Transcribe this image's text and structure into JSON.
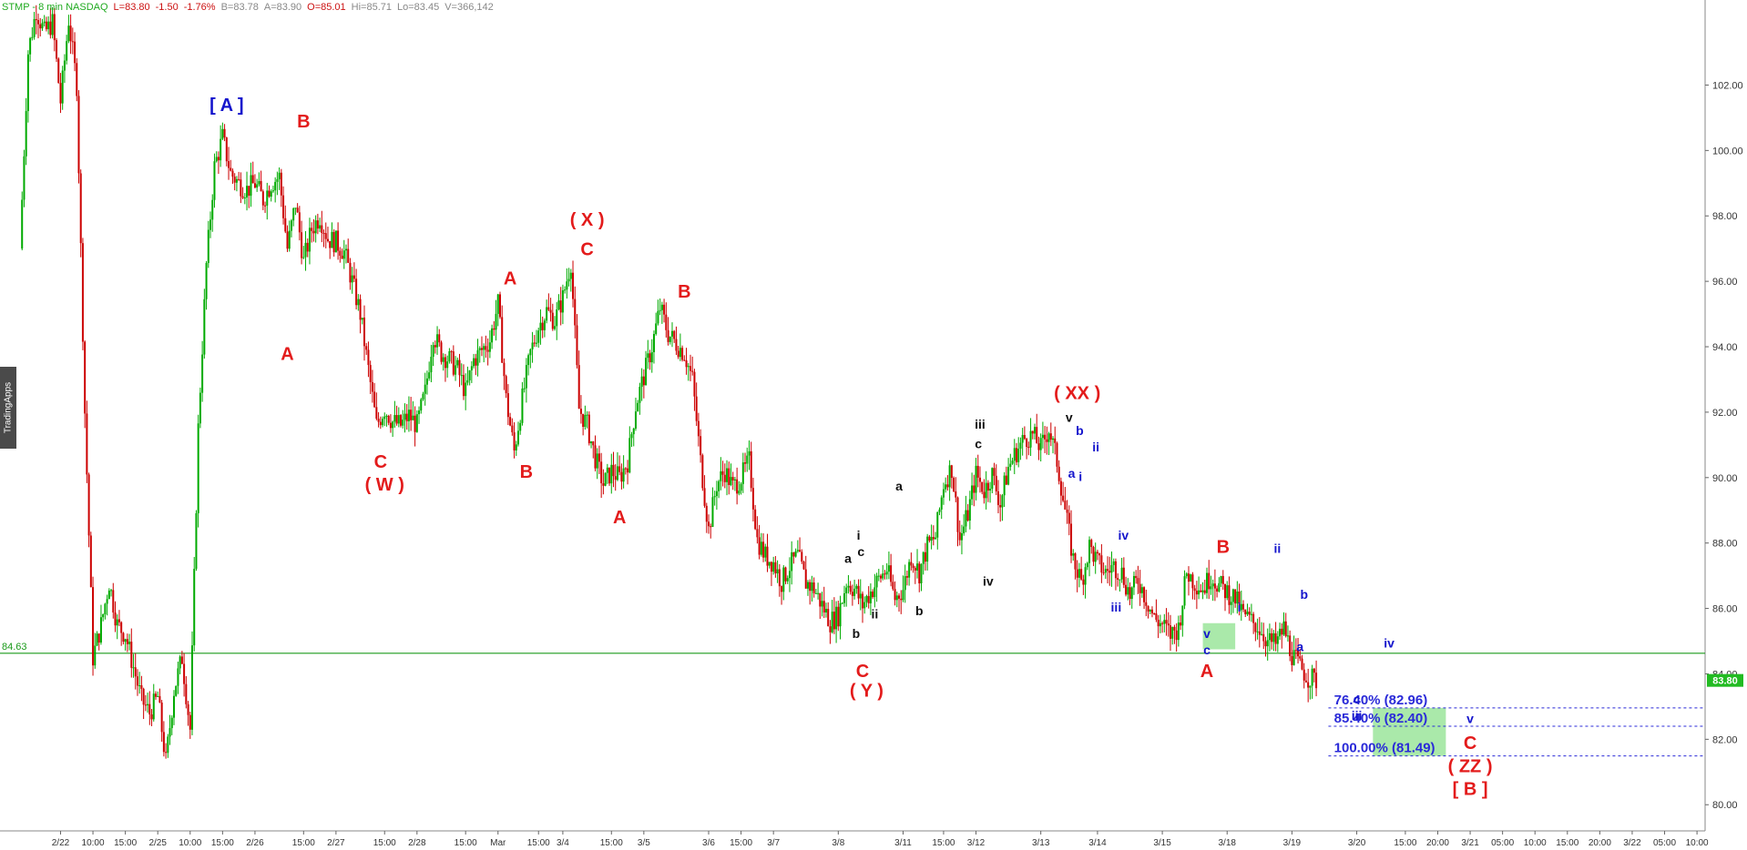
{
  "header": {
    "symbol": "STMP - 8 min  NASDAQ",
    "last": "L=83.80",
    "change": "-1.50",
    "change_pct": "-1.76%",
    "bid": "B=83.78",
    "ask": "A=83.90",
    "open": "O=85.01",
    "high": "Hi=85.71",
    "low": "Lo=83.45",
    "volume": "V=366,142"
  },
  "watermark": "TradingApps",
  "colors": {
    "up_candle": "#00aa00",
    "down_candle": "#cc0000",
    "wave_red": "#e31b1b",
    "wave_blue": "#1414cc",
    "wave_black": "#111111",
    "horizontal_line": "#1a9a1a",
    "fib_line": "#2a2ad8",
    "zone_fill": "#8ee28e",
    "price_badge": "#22bb22",
    "header_symbol": "#1faa1f",
    "header_red": "#cc1111",
    "header_gray": "#888888"
  },
  "chart_data": {
    "type": "candlestick",
    "ylim": [
      79.2,
      104.6
    ],
    "y_ticks": [
      80,
      82,
      84,
      86,
      88,
      90,
      92,
      94,
      96,
      98,
      100,
      102
    ],
    "y_tick_labels": [
      "80.00",
      "82.00",
      "84.00",
      "86.00",
      "88.00",
      "90.00",
      "92.00",
      "94.00",
      "96.00",
      "98.00",
      "100.00",
      "102.00"
    ],
    "x_labels": [
      "2/22",
      "10:00",
      "15:00",
      "2/25",
      "10:00",
      "15:00",
      "2/26",
      "15:00",
      "2/27",
      "15:00",
      "2/28",
      "15:00",
      "Mar",
      "15:00",
      "3/4",
      "15:00",
      "3/5",
      "3/6",
      "15:00",
      "3/7",
      "3/8",
      "3/11",
      "15:00",
      "3/12",
      "3/13",
      "3/14",
      "3/15",
      "3/18",
      "3/19",
      "3/20",
      "15:00",
      "20:00",
      "3/21",
      "05:00",
      "10:00",
      "15:00",
      "20:00",
      "3/22",
      "05:00",
      "10:00"
    ],
    "x_label_index": [
      5,
      9,
      13,
      17,
      21,
      25,
      29,
      35,
      39,
      45,
      49,
      55,
      59,
      64,
      67,
      73,
      77,
      85,
      89,
      93,
      101,
      109,
      114,
      118,
      126,
      133,
      141,
      149,
      157,
      165,
      171,
      175,
      179,
      183,
      187,
      191,
      195,
      199,
      203,
      207
    ],
    "price_path": [
      [
        0,
        97.0
      ],
      [
        1,
        103.0
      ],
      [
        2,
        104.3
      ],
      [
        3,
        103.6
      ],
      [
        4,
        103.9
      ],
      [
        5,
        101.5
      ],
      [
        6,
        104.0
      ],
      [
        7,
        102.0
      ],
      [
        8,
        92.0
      ],
      [
        9,
        84.5
      ],
      [
        10,
        85.5
      ],
      [
        11,
        86.8
      ],
      [
        12,
        85.5
      ],
      [
        13,
        85.2
      ],
      [
        14,
        84.2
      ],
      [
        15,
        83.2
      ],
      [
        16,
        82.8
      ],
      [
        17,
        83.3
      ],
      [
        18,
        81.3
      ],
      [
        19,
        83.5
      ],
      [
        20,
        84.5
      ],
      [
        21,
        82.3
      ],
      [
        22,
        91.5
      ],
      [
        23,
        96.5
      ],
      [
        24,
        99.5
      ],
      [
        25,
        100.4
      ],
      [
        26,
        99.3
      ],
      [
        27,
        99.0
      ],
      [
        28,
        98.8
      ],
      [
        29,
        99.0
      ],
      [
        30,
        98.5
      ],
      [
        31,
        99.0
      ],
      [
        32,
        99.2
      ],
      [
        33,
        97.0
      ],
      [
        34,
        98.4
      ],
      [
        35,
        96.6
      ],
      [
        36,
        97.6
      ],
      [
        37,
        98.0
      ],
      [
        38,
        97.3
      ],
      [
        39,
        97.2
      ],
      [
        40,
        96.9
      ],
      [
        41,
        96.0
      ],
      [
        42,
        95.0
      ],
      [
        43,
        93.3
      ],
      [
        44,
        91.6
      ],
      [
        45,
        92.1
      ],
      [
        46,
        91.7
      ],
      [
        47,
        91.6
      ],
      [
        48,
        91.9
      ],
      [
        49,
        91.6
      ],
      [
        50,
        92.6
      ],
      [
        51,
        94.4
      ],
      [
        52,
        93.8
      ],
      [
        53,
        93.6
      ],
      [
        54,
        93.3
      ],
      [
        55,
        92.6
      ],
      [
        56,
        93.6
      ],
      [
        57,
        93.9
      ],
      [
        58,
        94.2
      ],
      [
        59,
        95.3
      ],
      [
        60,
        92.4
      ],
      [
        61,
        90.8
      ],
      [
        62,
        92.4
      ],
      [
        63,
        93.8
      ],
      [
        64,
        94.6
      ],
      [
        65,
        95.1
      ],
      [
        66,
        94.8
      ],
      [
        67,
        95.5
      ],
      [
        68,
        96.6
      ],
      [
        69,
        92.1
      ],
      [
        70,
        91.6
      ],
      [
        71,
        90.6
      ],
      [
        72,
        89.8
      ],
      [
        73,
        90.2
      ],
      [
        74,
        90.0
      ],
      [
        75,
        90.5
      ],
      [
        76,
        92.2
      ],
      [
        77,
        93.1
      ],
      [
        78,
        94.0
      ],
      [
        79,
        95.2
      ],
      [
        80,
        94.4
      ],
      [
        81,
        94.1
      ],
      [
        82,
        93.8
      ],
      [
        83,
        93.0
      ],
      [
        84,
        90.5
      ],
      [
        85,
        88.4
      ],
      [
        86,
        89.8
      ],
      [
        87,
        90.2
      ],
      [
        88,
        89.7
      ],
      [
        89,
        90.0
      ],
      [
        90,
        90.5
      ],
      [
        91,
        88.1
      ],
      [
        92,
        87.6
      ],
      [
        93,
        87.4
      ],
      [
        94,
        86.8
      ],
      [
        95,
        87.3
      ],
      [
        96,
        87.6
      ],
      [
        97,
        86.8
      ],
      [
        98,
        86.6
      ],
      [
        99,
        86.1
      ],
      [
        100,
        85.6
      ],
      [
        101,
        85.8
      ],
      [
        102,
        86.8
      ],
      [
        103,
        86.6
      ],
      [
        104,
        86.1
      ],
      [
        105,
        86.5
      ],
      [
        106,
        86.9
      ],
      [
        107,
        87.2
      ],
      [
        108,
        86.3
      ],
      [
        109,
        86.6
      ],
      [
        110,
        87.6
      ],
      [
        111,
        87.1
      ],
      [
        112,
        87.9
      ],
      [
        113,
        88.2
      ],
      [
        114,
        89.8
      ],
      [
        115,
        90.3
      ],
      [
        116,
        88.1
      ],
      [
        117,
        88.9
      ],
      [
        118,
        90.1
      ],
      [
        119,
        89.6
      ],
      [
        120,
        90.1
      ],
      [
        121,
        89.2
      ],
      [
        122,
        90.3
      ],
      [
        123,
        90.8
      ],
      [
        124,
        91.2
      ],
      [
        125,
        91.3
      ],
      [
        126,
        90.9
      ],
      [
        127,
        91.5
      ],
      [
        128,
        90.5
      ],
      [
        129,
        89.0
      ],
      [
        130,
        87.5
      ],
      [
        131,
        86.8
      ],
      [
        132,
        87.9
      ],
      [
        133,
        87.4
      ],
      [
        134,
        87.1
      ],
      [
        135,
        87.3
      ],
      [
        136,
        87.1
      ],
      [
        137,
        86.4
      ],
      [
        138,
        86.9
      ],
      [
        139,
        86.3
      ],
      [
        140,
        85.7
      ],
      [
        141,
        85.5
      ],
      [
        142,
        85.2
      ],
      [
        143,
        85.4
      ],
      [
        144,
        87.1
      ],
      [
        145,
        86.8
      ],
      [
        146,
        86.6
      ],
      [
        147,
        87.0
      ],
      [
        148,
        86.7
      ],
      [
        149,
        86.5
      ],
      [
        150,
        86.3
      ],
      [
        151,
        85.8
      ],
      [
        152,
        85.6
      ],
      [
        153,
        85.4
      ],
      [
        154,
        85.0
      ],
      [
        155,
        84.9
      ],
      [
        156,
        85.4
      ],
      [
        157,
        84.6
      ],
      [
        158,
        84.2
      ],
      [
        159,
        83.9
      ],
      [
        160,
        83.8
      ]
    ],
    "horizontal_lines": [
      {
        "price": 84.63,
        "label": "84.63"
      }
    ],
    "fib_levels": [
      {
        "price": 82.96,
        "label": "76.40% (82.96)"
      },
      {
        "price": 82.4,
        "label": "85.40% (82.40)"
      },
      {
        "price": 81.49,
        "label": "100.00% (81.49)"
      }
    ],
    "zones": [
      {
        "x": [
          146,
          150
        ],
        "y": [
          84.75,
          85.55
        ]
      },
      {
        "x": [
          167,
          176
        ],
        "y": [
          81.49,
          82.96
        ]
      }
    ],
    "current_price": "83.80",
    "annotations": [
      {
        "text": "[ A ]",
        "x": 25.5,
        "y": 101.2,
        "color": "blue",
        "size": "lg"
      },
      {
        "text": "B",
        "x": 35,
        "y": 100.7,
        "color": "red",
        "size": "lg"
      },
      {
        "text": "A",
        "x": 33,
        "y": 93.6,
        "color": "red",
        "size": "lg"
      },
      {
        "text": "( X )",
        "x": 70,
        "y": 97.7,
        "color": "red",
        "size": "lg"
      },
      {
        "text": "C",
        "x": 70,
        "y": 96.8,
        "color": "red",
        "size": "lg"
      },
      {
        "text": "A",
        "x": 60.5,
        "y": 95.9,
        "color": "red",
        "size": "lg"
      },
      {
        "text": "B",
        "x": 82,
        "y": 95.5,
        "color": "red",
        "size": "lg"
      },
      {
        "text": "C",
        "x": 44.5,
        "y": 90.3,
        "color": "red",
        "size": "lg"
      },
      {
        "text": "( W )",
        "x": 45,
        "y": 89.6,
        "color": "red",
        "size": "lg"
      },
      {
        "text": "B",
        "x": 62.5,
        "y": 90.0,
        "color": "red",
        "size": "lg"
      },
      {
        "text": "A",
        "x": 74,
        "y": 88.6,
        "color": "red",
        "size": "lg"
      },
      {
        "text": "( XX )",
        "x": 130.5,
        "y": 92.4,
        "color": "red",
        "size": "lg"
      },
      {
        "text": "C",
        "x": 104,
        "y": 83.9,
        "color": "red",
        "size": "lg"
      },
      {
        "text": "( Y )",
        "x": 104.5,
        "y": 83.3,
        "color": "red",
        "size": "lg"
      },
      {
        "text": "B",
        "x": 148.5,
        "y": 87.7,
        "color": "red",
        "size": "lg"
      },
      {
        "text": "A",
        "x": 146.5,
        "y": 83.9,
        "color": "red",
        "size": "lg"
      },
      {
        "text": "C",
        "x": 179,
        "y": 81.7,
        "color": "red",
        "size": "lg"
      },
      {
        "text": "( ZZ )",
        "x": 179,
        "y": 81.0,
        "color": "red",
        "size": "lg"
      },
      {
        "text": "[ B ]",
        "x": 179,
        "y": 80.3,
        "color": "red",
        "size": "lg"
      },
      {
        "text": "iii",
        "x": 118.5,
        "y": 91.5,
        "color": "black",
        "size": "sm"
      },
      {
        "text": "c",
        "x": 118.3,
        "y": 90.9,
        "color": "black",
        "size": "sm"
      },
      {
        "text": "v",
        "x": 129.5,
        "y": 91.7,
        "color": "black",
        "size": "sm"
      },
      {
        "text": "a",
        "x": 108.5,
        "y": 89.6,
        "color": "black",
        "size": "sm"
      },
      {
        "text": "iv",
        "x": 119.5,
        "y": 86.7,
        "color": "black",
        "size": "sm"
      },
      {
        "text": "i",
        "x": 103.5,
        "y": 88.1,
        "color": "black",
        "size": "sm"
      },
      {
        "text": "a",
        "x": 102.2,
        "y": 87.4,
        "color": "black",
        "size": "sm"
      },
      {
        "text": "c",
        "x": 103.8,
        "y": 87.6,
        "color": "black",
        "size": "sm"
      },
      {
        "text": "ii",
        "x": 105.5,
        "y": 85.7,
        "color": "black",
        "size": "sm"
      },
      {
        "text": "b",
        "x": 111,
        "y": 85.8,
        "color": "black",
        "size": "sm"
      },
      {
        "text": "b",
        "x": 103.2,
        "y": 85.1,
        "color": "black",
        "size": "sm"
      },
      {
        "text": "b",
        "x": 130.8,
        "y": 91.3,
        "color": "blue",
        "size": "sm"
      },
      {
        "text": "ii",
        "x": 132.8,
        "y": 90.8,
        "color": "blue",
        "size": "sm"
      },
      {
        "text": "a",
        "x": 129.8,
        "y": 90.0,
        "color": "blue",
        "size": "sm"
      },
      {
        "text": "i",
        "x": 130.9,
        "y": 89.9,
        "color": "blue",
        "size": "sm"
      },
      {
        "text": "iv",
        "x": 136.2,
        "y": 88.1,
        "color": "blue",
        "size": "sm"
      },
      {
        "text": "iii",
        "x": 135.3,
        "y": 85.9,
        "color": "blue",
        "size": "sm"
      },
      {
        "text": "v",
        "x": 146.5,
        "y": 85.1,
        "color": "blue",
        "size": "sm"
      },
      {
        "text": "c",
        "x": 146.5,
        "y": 84.6,
        "color": "blue",
        "size": "sm"
      },
      {
        "text": "ii",
        "x": 155.2,
        "y": 87.7,
        "color": "blue",
        "size": "sm"
      },
      {
        "text": "b",
        "x": 158.5,
        "y": 86.3,
        "color": "blue",
        "size": "sm"
      },
      {
        "text": "i",
        "x": 150.5,
        "y": 85.9,
        "color": "blue",
        "size": "sm"
      },
      {
        "text": "a",
        "x": 158,
        "y": 84.7,
        "color": "blue",
        "size": "sm"
      },
      {
        "text": "iv",
        "x": 169,
        "y": 84.8,
        "color": "blue",
        "size": "sm"
      },
      {
        "text": "c",
        "x": 165,
        "y": 83.1,
        "color": "blue",
        "size": "sm"
      },
      {
        "text": "iii",
        "x": 165,
        "y": 82.6,
        "color": "blue",
        "size": "sm"
      },
      {
        "text": "v",
        "x": 179,
        "y": 82.5,
        "color": "blue",
        "size": "sm"
      }
    ]
  }
}
